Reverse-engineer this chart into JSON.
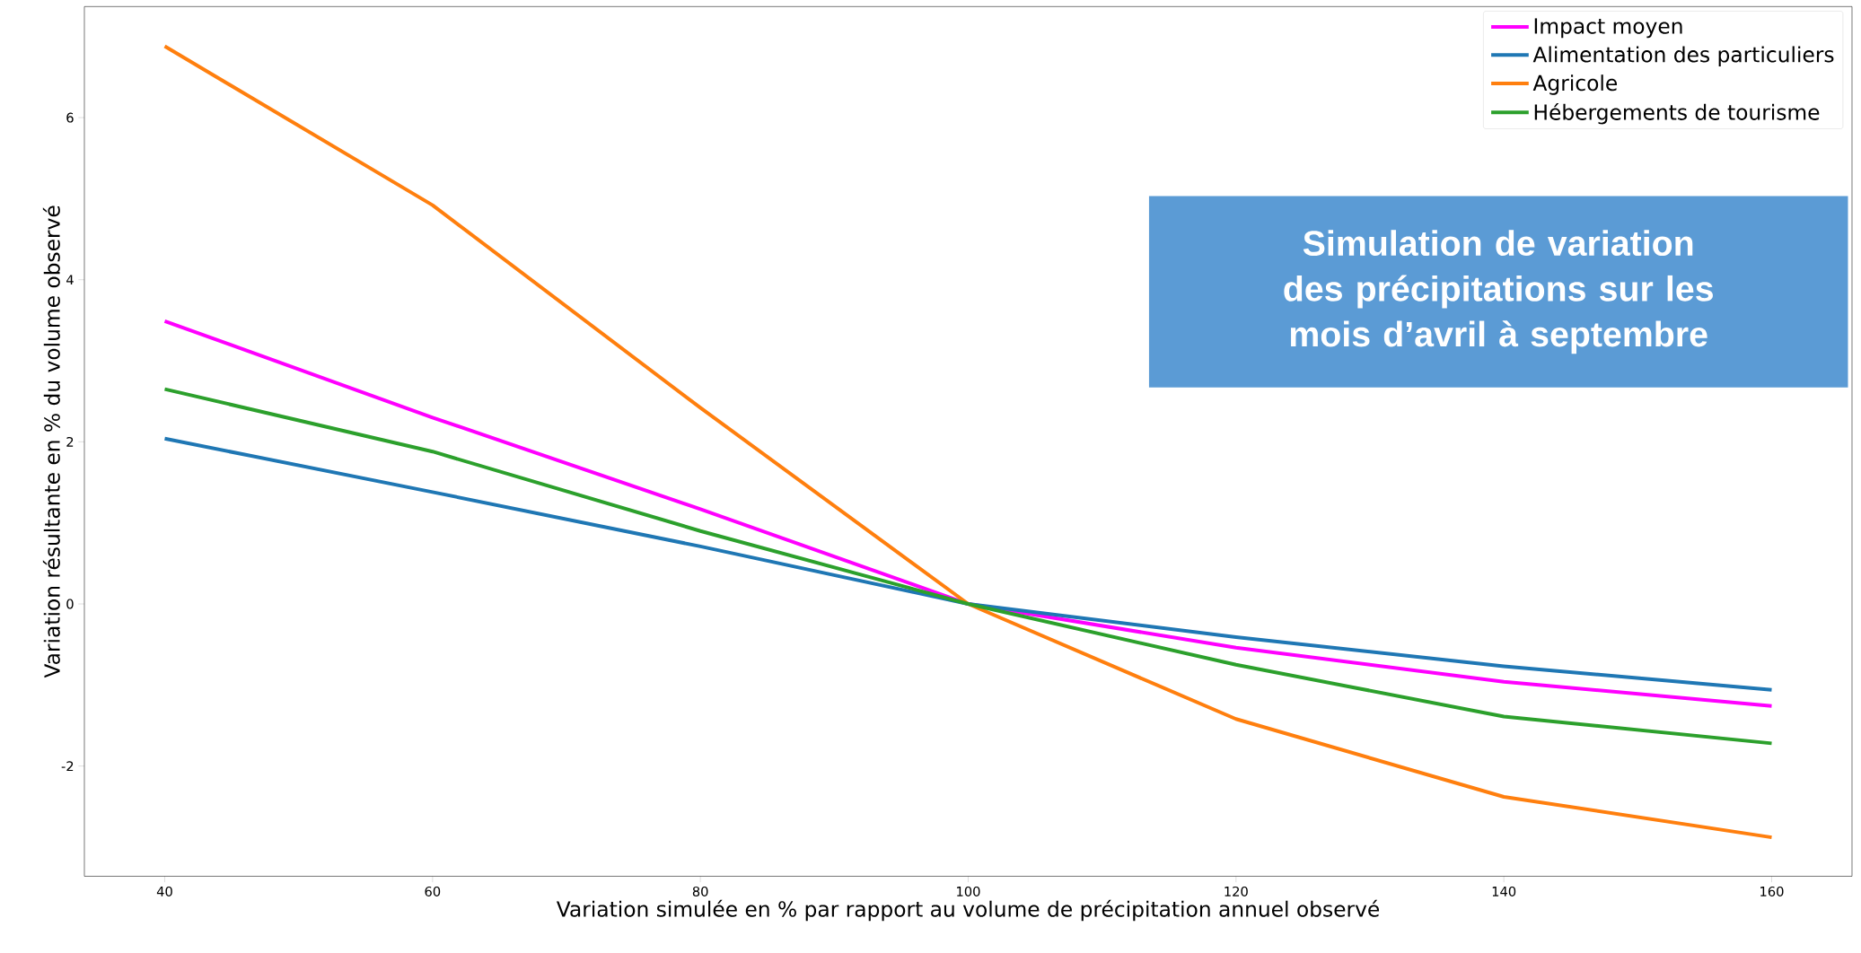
{
  "chart_data": {
    "type": "line",
    "xlabel": "Variation simulée en % par rapport au volume de précipitation annuel observé",
    "ylabel": "Variation résultante en % du volume observé",
    "x": [
      40,
      60,
      80,
      100,
      120,
      140,
      160
    ],
    "series": [
      {
        "name": "Impact moyen",
        "color": "#ff00ff",
        "values": [
          3.49,
          2.3,
          1.17,
          0,
          -0.54,
          -0.96,
          -1.26
        ]
      },
      {
        "name": "Alimentation des particuliers",
        "color": "#1f77b4",
        "values": [
          2.04,
          1.38,
          0.71,
          0,
          -0.41,
          -0.77,
          -1.06
        ]
      },
      {
        "name": "Agricole",
        "color": "#ff7f0e",
        "values": [
          6.88,
          4.92,
          2.42,
          0,
          -1.42,
          -2.38,
          -2.88
        ]
      },
      {
        "name": "Hébergements de tourisme",
        "color": "#2ca02c",
        "values": [
          2.65,
          1.88,
          0.9,
          0,
          -0.75,
          -1.39,
          -1.72
        ]
      }
    ],
    "annotations": [
      "Simulation de variation des précipitations sur les mois d’avril à septembre"
    ],
    "xlim": [
      34,
      166
    ],
    "ylim": [
      -3.36,
      7.37
    ],
    "xticks": [
      40,
      60,
      80,
      100,
      120,
      140,
      160
    ],
    "yticks": [
      -2,
      0,
      2,
      4,
      6
    ],
    "grid": false,
    "legend": "top right",
    "marker": "none",
    "line_style": "solid"
  }
}
